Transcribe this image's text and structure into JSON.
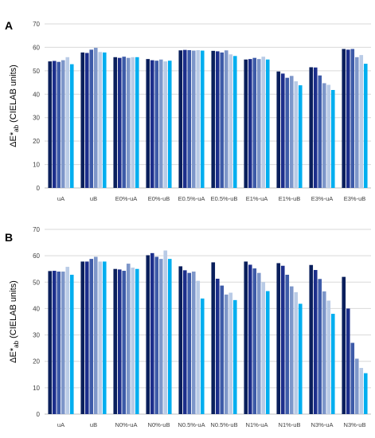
{
  "colors": [
    "#0a1f5c",
    "#1c2e8c",
    "#3d5aa8",
    "#7d96c9",
    "#b9cbe6",
    "#00aeef"
  ],
  "chart_data": [
    {
      "type": "bar",
      "panel": "A",
      "ylabel_parts": {
        "main": "ΔE*",
        "sub": "ab",
        "units": " (CIELAB units)"
      },
      "ylim": [
        0,
        70
      ],
      "yticks": [
        0,
        10,
        20,
        30,
        40,
        50,
        60,
        70
      ],
      "grid": true,
      "categories": [
        "uA",
        "uB",
        "E0%-uA",
        "E0%-uB",
        "E0.5%-uA",
        "E0.5%-uB",
        "E1%-uA",
        "E1%-uB",
        "E3%-uA",
        "E3%-uB"
      ],
      "values": [
        [
          54.0,
          54.2,
          53.8,
          54.5,
          55.8,
          52.8
        ],
        [
          57.8,
          57.6,
          59.0,
          59.8,
          58.0,
          57.8
        ],
        [
          55.8,
          55.5,
          56.0,
          55.5,
          55.8,
          55.8
        ],
        [
          55.0,
          54.5,
          54.3,
          54.8,
          54.0,
          54.3
        ],
        [
          58.7,
          58.9,
          58.8,
          58.6,
          58.8,
          58.6
        ],
        [
          58.5,
          58.3,
          57.8,
          58.7,
          57.0,
          56.3
        ],
        [
          54.8,
          55.0,
          55.5,
          55.0,
          56.0,
          54.8
        ],
        [
          49.7,
          48.8,
          47.0,
          47.8,
          45.5,
          43.8
        ],
        [
          51.5,
          51.4,
          48.0,
          44.7,
          44.0,
          41.8
        ],
        [
          59.3,
          59.0,
          59.3,
          55.8,
          56.7,
          53.0
        ]
      ]
    },
    {
      "type": "bar",
      "panel": "B",
      "ylabel_parts": {
        "main": "ΔE*",
        "sub": "ab",
        "units": " (CIELAB units)"
      },
      "ylim": [
        0,
        70
      ],
      "yticks": [
        0,
        10,
        20,
        30,
        40,
        50,
        60,
        70
      ],
      "grid": true,
      "categories": [
        "uA",
        "uB",
        "N0%-uA",
        "N0%-uB",
        "N0.5%-uA",
        "N0.5%-uB",
        "N1%-uA",
        "N1%-uB",
        "N3%-uA",
        "N3%-uB"
      ],
      "values": [
        [
          54.2,
          54.3,
          54.0,
          54.0,
          55.8,
          52.8
        ],
        [
          57.8,
          57.8,
          58.8,
          59.6,
          57.8,
          57.8
        ],
        [
          55.0,
          54.8,
          54.3,
          57.0,
          55.5,
          55.0
        ],
        [
          60.2,
          61.0,
          59.6,
          58.8,
          62.0,
          58.8
        ],
        [
          56.0,
          54.5,
          53.5,
          54.0,
          50.5,
          43.8
        ],
        [
          57.5,
          51.3,
          48.7,
          45.3,
          46.0,
          43.2
        ],
        [
          57.8,
          56.6,
          55.2,
          53.5,
          50.0,
          46.6
        ],
        [
          57.2,
          56.2,
          52.8,
          48.4,
          46.2,
          41.8
        ],
        [
          56.5,
          54.6,
          51.2,
          46.5,
          43.0,
          38.0
        ],
        [
          52.0,
          40.0,
          27.0,
          21.0,
          17.5,
          15.5
        ]
      ]
    }
  ]
}
